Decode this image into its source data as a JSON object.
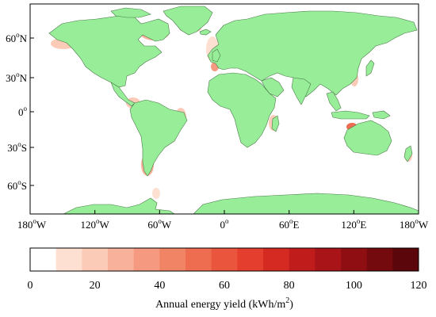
{
  "map": {
    "y_axis_labels": [
      {
        "deg": "60",
        "dir": "N"
      },
      {
        "deg": "30",
        "dir": "N"
      },
      {
        "deg": "0",
        "dir": ""
      },
      {
        "deg": "30",
        "dir": "S"
      },
      {
        "deg": "60",
        "dir": "S"
      }
    ],
    "x_axis_labels": [
      {
        "deg": "180",
        "dir": "W"
      },
      {
        "deg": "120",
        "dir": "W"
      },
      {
        "deg": "60",
        "dir": "W"
      },
      {
        "deg": "0",
        "dir": ""
      },
      {
        "deg": "60",
        "dir": "E"
      },
      {
        "deg": "120",
        "dir": "E"
      },
      {
        "deg": "180",
        "dir": "W"
      }
    ],
    "land_color": "#98ee98",
    "ocean_color": "#ffffff"
  },
  "colorbar": {
    "ticks": [
      "0",
      "20",
      "40",
      "60",
      "80",
      "100",
      "120"
    ],
    "colors": [
      "#ffffff",
      "#fde0d2",
      "#fbcbb8",
      "#f8b29b",
      "#f59a80",
      "#f28466",
      "#ee6c4f",
      "#ea553d",
      "#e33e2e",
      "#d42a22",
      "#c01c1c",
      "#a81417",
      "#8f0e12",
      "#740a0e",
      "#5a060a"
    ],
    "label_prefix": "Annual energy yield (kWh/m",
    "label_sup": "2",
    "label_suffix": ")"
  }
}
